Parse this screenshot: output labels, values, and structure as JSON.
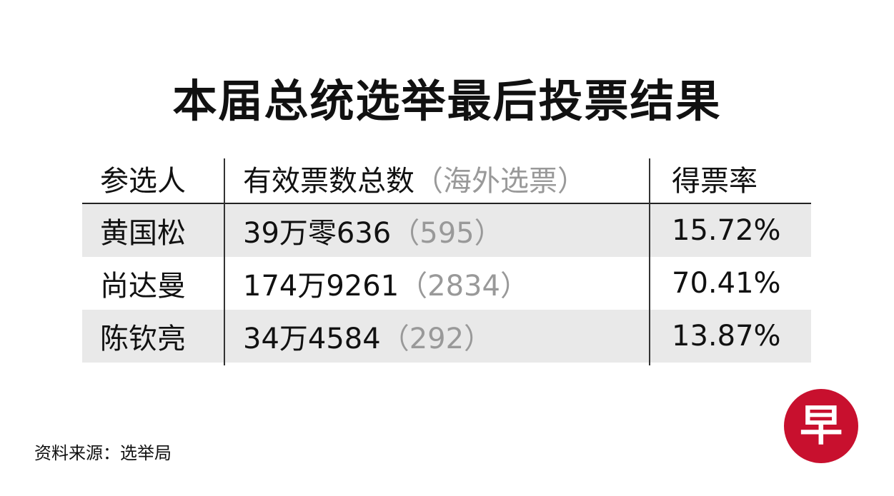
{
  "title": "本届总统选举最后投票结果",
  "table": {
    "headers": {
      "candidate": "参选人",
      "votes": "有效票数总数",
      "overseas": "（海外选票）",
      "rate": "得票率"
    },
    "rows": [
      {
        "candidate": "黄国松",
        "votes": "39万零636",
        "overseas": "（595）",
        "rate": "15.72%"
      },
      {
        "candidate": "尚达曼",
        "votes": "174万9261",
        "overseas": "（2834）",
        "rate": "70.41%"
      },
      {
        "candidate": "陈钦亮",
        "votes": "34万4584",
        "overseas": "（292）",
        "rate": "13.87%"
      }
    ]
  },
  "footer": "资料来源：选举局",
  "logo": {
    "text": "早",
    "color": "#c8102e"
  }
}
